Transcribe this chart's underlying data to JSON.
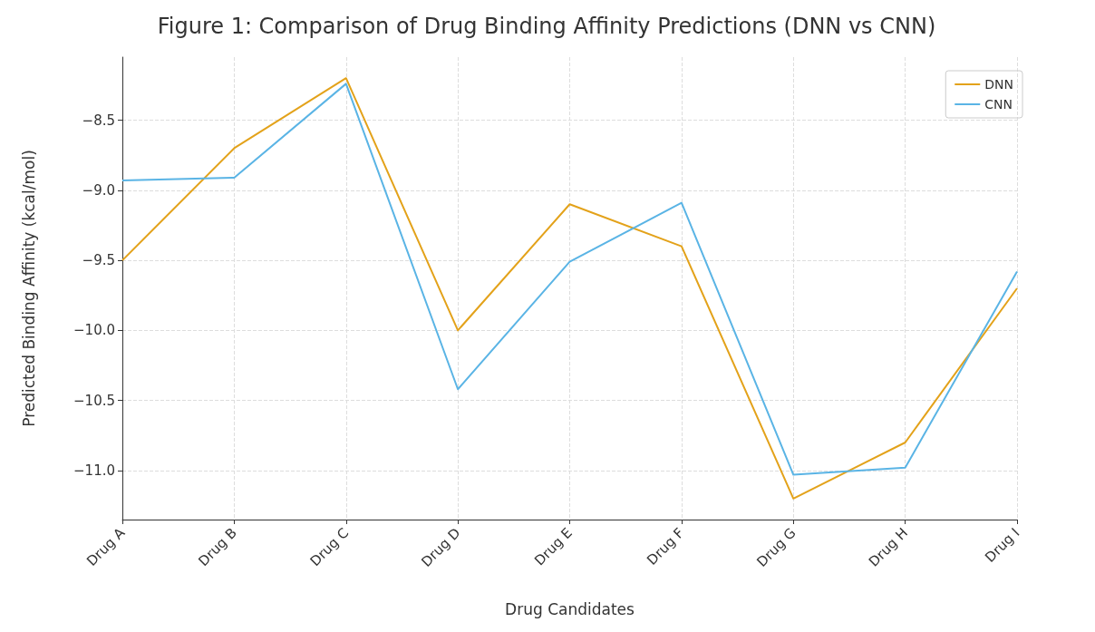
{
  "chart_data": {
    "type": "line",
    "title": "Figure 1: Comparison of Drug Binding Affinity Predictions (DNN vs CNN)",
    "xlabel": "Drug Candidates",
    "ylabel": "Predicted Binding Affinity (kcal/mol)",
    "categories": [
      "Drug A",
      "Drug B",
      "Drug C",
      "Drug D",
      "Drug E",
      "Drug F",
      "Drug G",
      "Drug H",
      "Drug I"
    ],
    "series": [
      {
        "name": "DNN",
        "color": "#e3a21a",
        "values": [
          -9.5,
          -8.7,
          -8.2,
          -10.0,
          -9.1,
          -9.4,
          -11.2,
          -10.8,
          -9.7
        ]
      },
      {
        "name": "CNN",
        "color": "#5ab4e5",
        "values": [
          -8.93,
          -8.91,
          -8.24,
          -10.42,
          -9.51,
          -9.09,
          -11.03,
          -10.98,
          -9.58
        ]
      }
    ],
    "ylim": [
      -11.35,
      -8.05
    ],
    "yticks": [
      {
        "value": -11,
        "label": "−11.0"
      },
      {
        "value": -10.5,
        "label": "−10.5"
      },
      {
        "value": -10,
        "label": "−10.0"
      },
      {
        "value": -9.5,
        "label": "−9.5"
      },
      {
        "value": -9,
        "label": "−9.0"
      },
      {
        "value": -8.5,
        "label": "−8.5"
      }
    ],
    "grid": true,
    "legend": "top right",
    "marker": "none",
    "line_style": "solid"
  }
}
